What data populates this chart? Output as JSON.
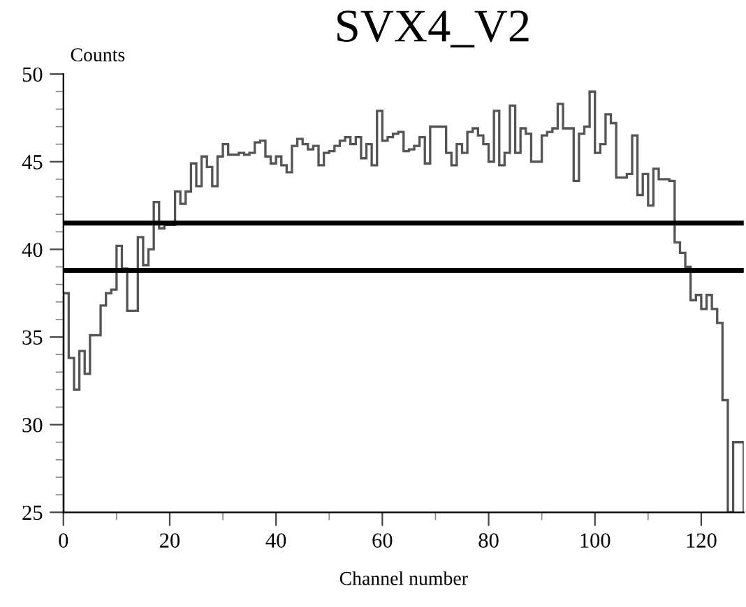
{
  "chart_data": {
    "type": "histogram",
    "title": "SVX4_V2",
    "xlabel": "Channel number",
    "ylabel": "Counts",
    "bins": [
      0,
      1,
      2,
      3,
      4,
      5,
      6,
      7,
      8,
      9,
      10,
      11,
      12,
      13,
      14,
      15,
      16,
      17,
      18,
      19,
      20,
      21,
      22,
      23,
      24,
      25,
      26,
      27,
      28,
      29,
      30,
      31,
      32,
      33,
      34,
      35,
      36,
      37,
      38,
      39,
      40,
      41,
      42,
      43,
      44,
      45,
      46,
      47,
      48,
      49,
      50,
      51,
      52,
      53,
      54,
      55,
      56,
      57,
      58,
      59,
      60,
      61,
      62,
      63,
      64,
      65,
      66,
      67,
      68,
      69,
      70,
      71,
      72,
      73,
      74,
      75,
      76,
      77,
      78,
      79,
      80,
      81,
      82,
      83,
      84,
      85,
      86,
      87,
      88,
      89,
      90,
      91,
      92,
      93,
      94,
      95,
      96,
      97,
      98,
      99,
      100,
      101,
      102,
      103,
      104,
      105,
      106,
      107,
      108,
      109,
      110,
      111,
      112,
      113,
      114,
      115,
      116,
      117,
      118,
      119,
      120,
      121,
      122,
      123,
      124,
      125,
      126,
      127,
      128
    ],
    "values": [
      37.5,
      33.8,
      32.0,
      34.2,
      32.9,
      35.1,
      35.1,
      36.8,
      37.5,
      37.7,
      40.2,
      38.9,
      36.5,
      36.5,
      40.7,
      39.1,
      40.0,
      42.7,
      41.2,
      41.4,
      41.4,
      43.3,
      42.6,
      43.3,
      44.9,
      43.6,
      45.3,
      44.7,
      43.6,
      45.3,
      46.0,
      45.4,
      45.4,
      45.5,
      45.4,
      45.5,
      46.1,
      46.2,
      45.3,
      44.9,
      45.3,
      44.8,
      44.4,
      45.9,
      46.3,
      46.0,
      45.7,
      45.9,
      44.8,
      45.5,
      45.6,
      45.9,
      46.2,
      46.4,
      46.0,
      46.4,
      45.2,
      46.0,
      44.8,
      47.9,
      46.2,
      46.4,
      46.6,
      46.7,
      45.6,
      45.7,
      45.9,
      46.4,
      44.9,
      47.0,
      47.0,
      47.0,
      45.5,
      44.8,
      46.0,
      45.5,
      46.7,
      46.9,
      46.5,
      46.0,
      45.0,
      47.9,
      44.8,
      45.5,
      48.2,
      45.5,
      46.9,
      46.6,
      45.0,
      45.0,
      46.5,
      46.7,
      46.9,
      48.3,
      46.9,
      46.9,
      43.9,
      46.6,
      47.0,
      49.0,
      45.5,
      46.0,
      47.7,
      47.2,
      44.1,
      44.1,
      44.3,
      46.5,
      43.1,
      44.3,
      42.5,
      44.6,
      44.0,
      44.0,
      43.9,
      40.4,
      39.8,
      39.0,
      37.1,
      37.4,
      36.6,
      37.4,
      36.6,
      35.8,
      31.4,
      25.0,
      29.0,
      29.0
    ],
    "color": "#555555",
    "xlim": [
      0,
      128
    ],
    "xticks": [
      0,
      20,
      40,
      60,
      80,
      100,
      120
    ],
    "ylim": [
      25,
      50
    ],
    "yticks": [
      25,
      30,
      35,
      40,
      45,
      50
    ],
    "ref_lines": [
      {
        "axis": "y",
        "value": 41.5,
        "label": null,
        "color": "#000000"
      },
      {
        "axis": "y",
        "value": 38.8,
        "label": null,
        "color": "#000000"
      }
    ],
    "grid": false,
    "legend": false
  }
}
